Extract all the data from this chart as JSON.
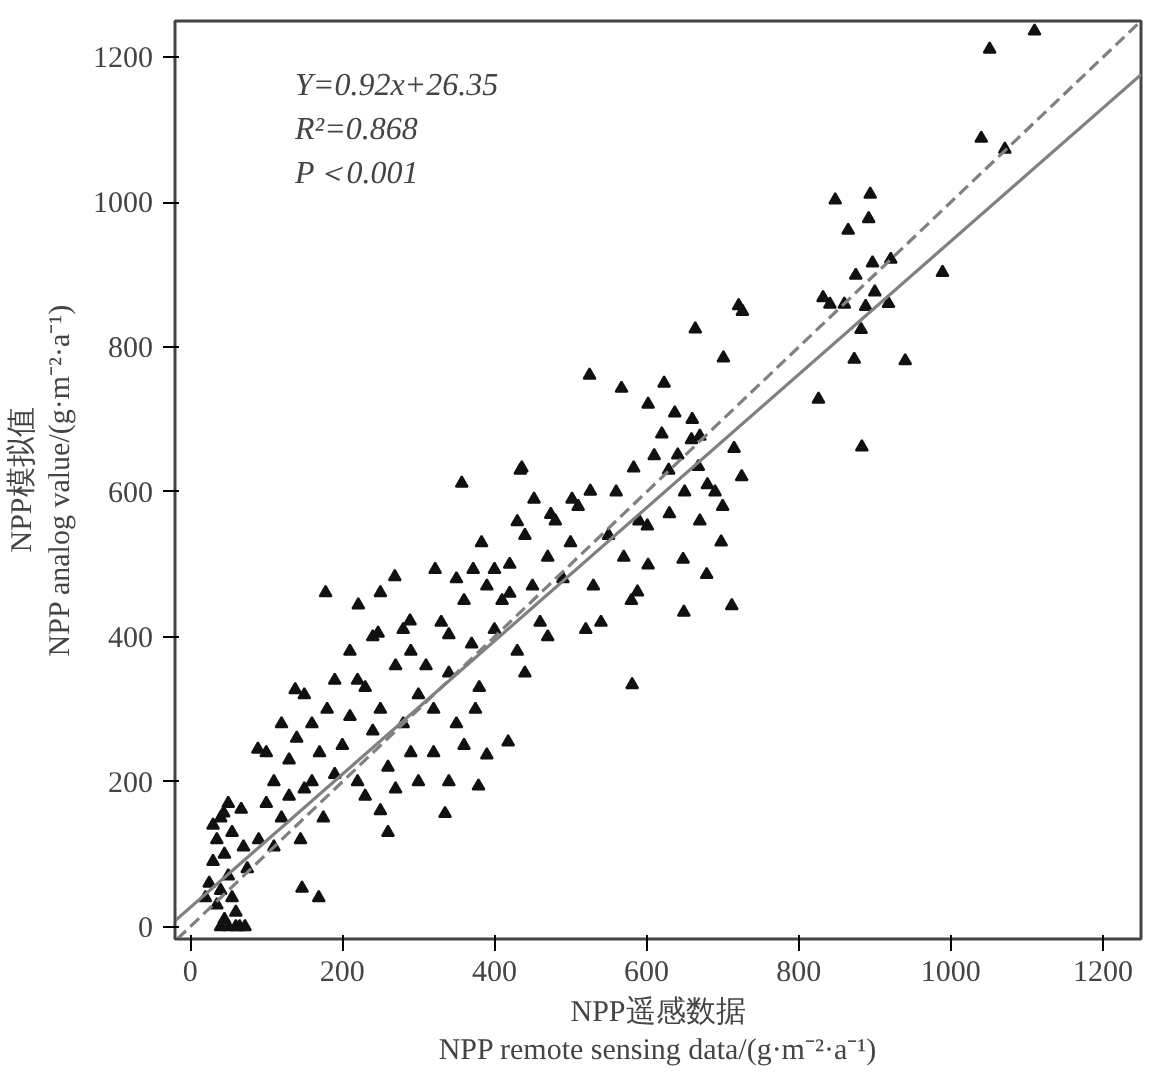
{
  "chart_data": {
    "type": "scatter",
    "xlabel": "NPP遥感数据\nNPP remote sensing data/(g·m⁻²·a⁻¹)",
    "ylabel": "NPP模拟值\nNPP analog value/(g·m⁻²·a⁻¹)",
    "xlim": [
      -20,
      1250
    ],
    "ylim": [
      -17,
      1250
    ],
    "xticks": [
      0,
      200,
      400,
      600,
      800,
      1000,
      1200
    ],
    "yticks": [
      0,
      200,
      400,
      600,
      800,
      1000,
      1200
    ],
    "grid": false,
    "annotations": [
      "Y=0.92x+26.35",
      "R²=0.868",
      "P＜0.001"
    ],
    "series": [
      {
        "marker": "triangle",
        "color": "#111111",
        "x": [
          1110,
          1051,
          1040,
          1071,
          848,
          894,
          892,
          865,
          875,
          897,
          921,
          989,
          832,
          841,
          860,
          888,
          900,
          918,
          882,
          873,
          940,
          826,
          883,
          721,
          726,
          664,
          701,
          525,
          567,
          623,
          602,
          637,
          659,
          670,
          715,
          641,
          583,
          436,
          357,
          668,
          725,
          434,
          629,
          680,
          452,
          502,
          526,
          474,
          430,
          383,
          601,
          698,
          648,
          602,
          679,
          588,
          649,
          712,
          581,
          178,
          221,
          269,
          322,
          372,
          400,
          250,
          247,
          289,
          340,
          418,
          390,
          379,
          335,
          138,
          89,
          169,
          147,
          44,
          67,
          40,
          72,
          25,
          30,
          35,
          40,
          45,
          50,
          55,
          60,
          45,
          50,
          60,
          65,
          35,
          40,
          55,
          70,
          75,
          30,
          50,
          20,
          90,
          100,
          110,
          120,
          130,
          140,
          150,
          160,
          170,
          180,
          190,
          100,
          120,
          150,
          160,
          110,
          130,
          175,
          190,
          145,
          200,
          210,
          220,
          230,
          240,
          250,
          260,
          270,
          280,
          290,
          300,
          210,
          230,
          250,
          270,
          290,
          220,
          240,
          260,
          280,
          310,
          320,
          330,
          340,
          350,
          360,
          370,
          380,
          390,
          400,
          320,
          340,
          360,
          300,
          350,
          375,
          410,
          420,
          430,
          440,
          450,
          460,
          470,
          480,
          490,
          500,
          440,
          470,
          420,
          510,
          530,
          550,
          560,
          570,
          590,
          540,
          520,
          580,
          610,
          630,
          650,
          670,
          690,
          620,
          660,
          700
        ],
        "values": [
          1236,
          1211,
          1088,
          1073,
          1003,
          1011,
          977,
          961,
          899,
          916,
          921,
          903,
          868,
          859,
          859,
          856,
          876,
          860,
          824,
          783,
          781,
          728,
          662,
          857,
          849,
          825,
          785,
          761,
          743,
          750,
          721,
          709,
          672,
          677,
          660,
          651,
          633,
          633,
          612,
          635,
          621,
          630,
          630,
          610,
          590,
          590,
          601,
          569,
          559,
          530,
          553,
          531,
          507,
          499,
          486,
          462,
          434,
          443,
          334,
          461,
          444,
          483,
          493,
          493,
          493,
          461,
          405,
          422,
          403,
          255,
          237,
          194,
          156,
          327,
          245,
          40,
          53,
          157,
          162,
          0,
          0,
          60,
          90,
          120,
          150,
          100,
          70,
          40,
          20,
          10,
          0,
          0,
          0,
          30,
          50,
          130,
          110,
          80,
          140,
          170,
          40,
          120,
          170,
          200,
          150,
          230,
          260,
          190,
          280,
          240,
          300,
          210,
          240,
          280,
          320,
          200,
          110,
          180,
          150,
          340,
          120,
          250,
          290,
          200,
          330,
          270,
          300,
          220,
          360,
          280,
          240,
          320,
          380,
          180,
          160,
          190,
          380,
          340,
          400,
          130,
          410,
          360,
          300,
          420,
          350,
          280,
          450,
          390,
          330,
          470,
          410,
          240,
          200,
          250,
          200,
          480,
          300,
          450,
          500,
          380,
          540,
          470,
          420,
          510,
          560,
          480,
          530,
          350,
          400,
          460,
          580,
          470,
          540,
          600,
          510,
          560,
          420,
          410,
          450,
          650,
          570,
          600,
          560,
          600,
          680,
          700,
          580
        ]
      },
      {
        "type": "line",
        "color": "#808080",
        "line_style": "dashed",
        "x": [
          -17,
          1250
        ],
        "values": [
          -17,
          1250
        ]
      },
      {
        "type": "line",
        "color": "#808080",
        "line_style": "solid",
        "x": [
          -20,
          1250
        ],
        "values": [
          8,
          1176
        ]
      }
    ]
  }
}
